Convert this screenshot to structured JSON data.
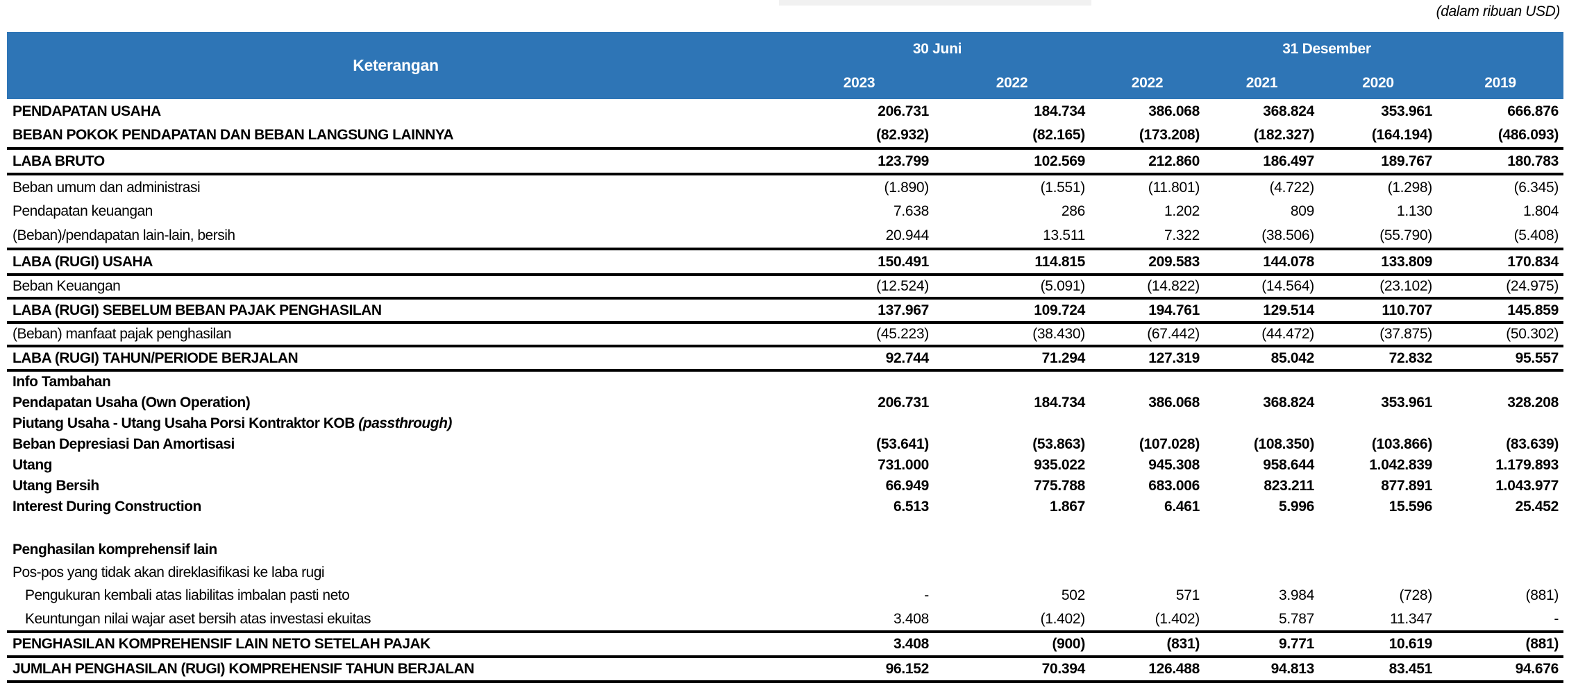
{
  "meta": {
    "unit_note": "(dalam ribuan USD)"
  },
  "colors": {
    "header_bg": "#2E75B6",
    "header_text": "#FFFFFF",
    "border": "#000000",
    "topbar_gray": "#F1F1F1"
  },
  "header": {
    "keterangan": "Keterangan",
    "period_groups": [
      {
        "label": "30 Juni",
        "span": 2
      },
      {
        "label": "31 Desember",
        "span": 4
      }
    ],
    "years": [
      "2023",
      "2022",
      "2022",
      "2021",
      "2020",
      "2019"
    ]
  },
  "rows": [
    {
      "label": "PENDAPATAN USAHA",
      "bold": true,
      "values": [
        "206.731",
        "184.734",
        "386.068",
        "368.824",
        "353.961",
        "666.876"
      ]
    },
    {
      "label": "BEBAN POKOK PENDAPATAN DAN BEBAN LANGSUNG LAINNYA",
      "bold": true,
      "border": true,
      "values": [
        "(82.932)",
        "(82.165)",
        "(173.208)",
        "(182.327)",
        "(164.194)",
        "(486.093)"
      ]
    },
    {
      "label": "LABA BRUTO",
      "bold": true,
      "border": true,
      "values": [
        "123.799",
        "102.569",
        "212.860",
        "186.497",
        "189.767",
        "180.783"
      ]
    },
    {
      "label": "Beban umum dan administrasi",
      "values": [
        "(1.890)",
        "(1.551)",
        "(11.801)",
        "(4.722)",
        "(1.298)",
        "(6.345)"
      ]
    },
    {
      "label": "Pendapatan keuangan",
      "values": [
        "7.638",
        "286",
        "1.202",
        "809",
        "1.130",
        "1.804"
      ]
    },
    {
      "label": "(Beban)/pendapatan lain-lain, bersih",
      "border": true,
      "values": [
        "20.944",
        "13.511",
        "7.322",
        "(38.506)",
        "(55.790)",
        "(5.408)"
      ]
    },
    {
      "label": "LABA (RUGI) USAHA",
      "bold": true,
      "border": true,
      "values": [
        "150.491",
        "114.815",
        "209.583",
        "144.078",
        "133.809",
        "170.834"
      ]
    },
    {
      "label": "Beban Keuangan",
      "border": true,
      "values": [
        "(12.524)",
        "(5.091)",
        "(14.822)",
        "(14.564)",
        "(23.102)",
        "(24.975)"
      ]
    },
    {
      "label": "LABA (RUGI) SEBELUM BEBAN PAJAK PENGHASILAN",
      "bold": true,
      "border": true,
      "values": [
        "137.967",
        "109.724",
        "194.761",
        "129.514",
        "110.707",
        "145.859"
      ]
    },
    {
      "label": "(Beban) manfaat pajak penghasilan",
      "border": true,
      "values": [
        "(45.223)",
        "(38.430)",
        "(67.442)",
        "(44.472)",
        "(37.875)",
        "(50.302)"
      ]
    },
    {
      "label": "LABA (RUGI) TAHUN/PERIODE BERJALAN",
      "bold": true,
      "border": true,
      "values": [
        "92.744",
        "71.294",
        "127.319",
        "85.042",
        "72.832",
        "95.557"
      ]
    },
    {
      "label": "Info Tambahan",
      "bold": true,
      "values": []
    },
    {
      "label": "Pendapatan Usaha (Own Operation)",
      "bold": true,
      "values": [
        "206.731",
        "184.734",
        "386.068",
        "368.824",
        "353.961",
        "328.208"
      ]
    },
    {
      "label": "Piutang Usaha - Utang Usaha Porsi Kontraktor KOB ",
      "label_italic": "(passthrough)",
      "bold": true,
      "values": []
    },
    {
      "label": "Beban Depresiasi Dan Amortisasi",
      "bold": true,
      "values": [
        "(53.641)",
        "(53.863)",
        "(107.028)",
        "(108.350)",
        "(103.866)",
        "(83.639)"
      ]
    },
    {
      "label": "Utang",
      "bold": true,
      "values": [
        "731.000",
        "935.022",
        "945.308",
        "958.644",
        "1.042.839",
        "1.179.893"
      ]
    },
    {
      "label": "Utang Bersih",
      "bold": true,
      "values": [
        "66.949",
        "775.788",
        "683.006",
        "823.211",
        "877.891",
        "1.043.977"
      ]
    },
    {
      "label": "Interest During Construction",
      "bold": true,
      "values": [
        "6.513",
        "1.867",
        "6.461",
        "5.996",
        "15.596",
        "25.452"
      ]
    },
    {
      "spacer": true
    },
    {
      "label": "Penghasilan komprehensif lain",
      "bold": true,
      "values": []
    },
    {
      "label": "Pos-pos yang tidak akan direklasifikasi ke laba rugi",
      "values": []
    },
    {
      "label": "Pengukuran kembali atas liabilitas imbalan pasti neto",
      "indent": true,
      "values": [
        "-",
        "502",
        "571",
        "3.984",
        "(728)",
        "(881)"
      ]
    },
    {
      "label": "Keuntungan nilai wajar aset bersih atas investasi ekuitas",
      "indent": true,
      "border": true,
      "values": [
        "3.408",
        "(1.402)",
        "(1.402)",
        "5.787",
        "11.347",
        "-"
      ]
    },
    {
      "label": "PENGHASILAN KOMPREHENSIF LAIN NETO SETELAH PAJAK",
      "bold": true,
      "border": true,
      "values": [
        "3.408",
        "(900)",
        "(831)",
        "9.771",
        "10.619",
        "(881)"
      ]
    },
    {
      "label": "JUMLAH PENGHASILAN (RUGI) KOMPREHENSIF TAHUN BERJALAN",
      "bold": true,
      "border": true,
      "values": [
        "96.152",
        "70.394",
        "126.488",
        "94.813",
        "83.451",
        "94.676"
      ]
    }
  ]
}
